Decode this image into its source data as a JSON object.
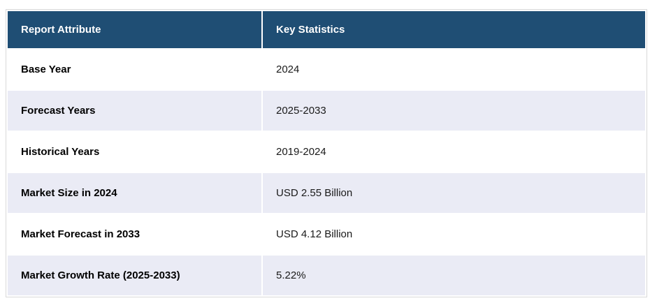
{
  "chart_data": {
    "type": "table",
    "columns": [
      "Report Attribute",
      "Key Statistics"
    ],
    "rows": [
      {
        "attribute": "Base Year",
        "value": "2024"
      },
      {
        "attribute": "Forecast Years",
        "value": "2025-2033"
      },
      {
        "attribute": "Historical Years",
        "value": "2019-2024"
      },
      {
        "attribute": "Market Size in 2024",
        "value": "USD 2.55 Billion"
      },
      {
        "attribute": "Market Forecast in 2033",
        "value": "USD 4.12 Billion"
      },
      {
        "attribute": "Market Growth Rate (2025-2033)",
        "value": "5.22%"
      }
    ]
  },
  "colors": {
    "header_bg": "#1F4E74",
    "header_text": "#FFFFFF",
    "row_bg": "#FFFFFF",
    "row_alt_bg": "#EAEBF5",
    "border": "#D9D9D9",
    "attribute_text": "#000000",
    "value_text": "#1A1A1A"
  }
}
